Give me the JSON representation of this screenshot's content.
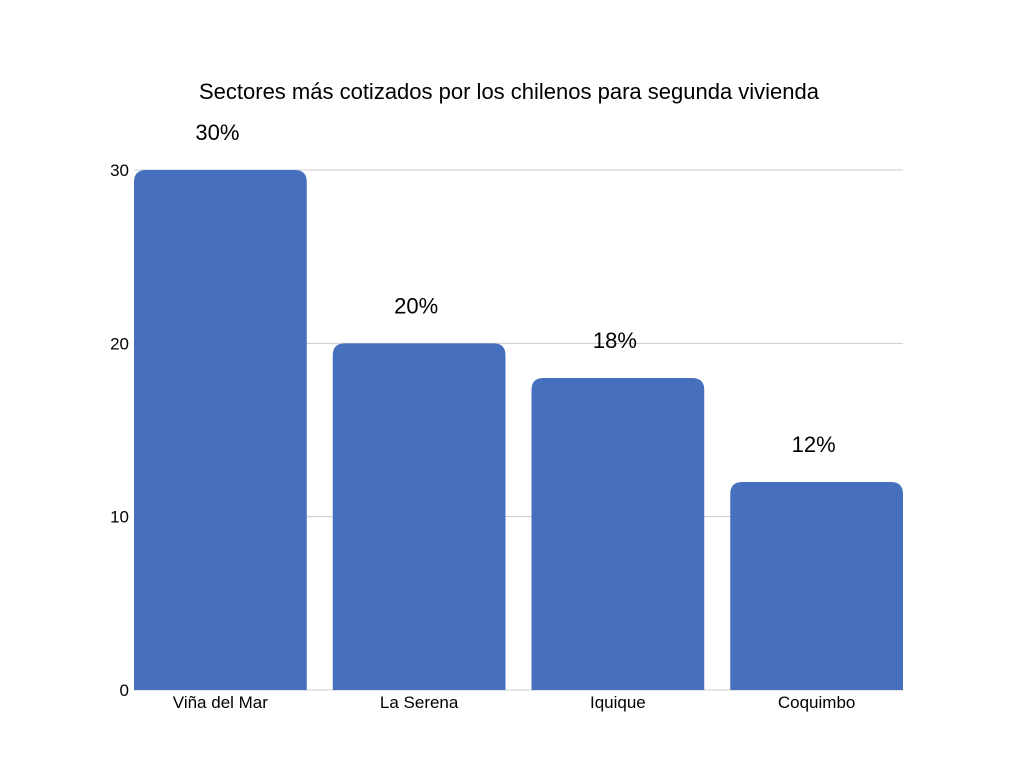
{
  "chart_data": {
    "type": "bar",
    "title": "Sectores más cotizados por los chilenos para segunda vivienda",
    "categories": [
      "Viña del Mar",
      "La Serena",
      "Iquique",
      "Coquimbo"
    ],
    "values": [
      30,
      20,
      18,
      12
    ],
    "data_labels": [
      "30%",
      "20%",
      "18%",
      "12%"
    ],
    "xlabel": "",
    "ylabel": "",
    "ylim": [
      0,
      30
    ],
    "yticks": [
      0,
      10,
      20,
      30
    ],
    "ytick_labels": [
      "0",
      "10",
      "20",
      "30"
    ],
    "grid": true,
    "legend": "none",
    "bar_color": "#4670be"
  }
}
